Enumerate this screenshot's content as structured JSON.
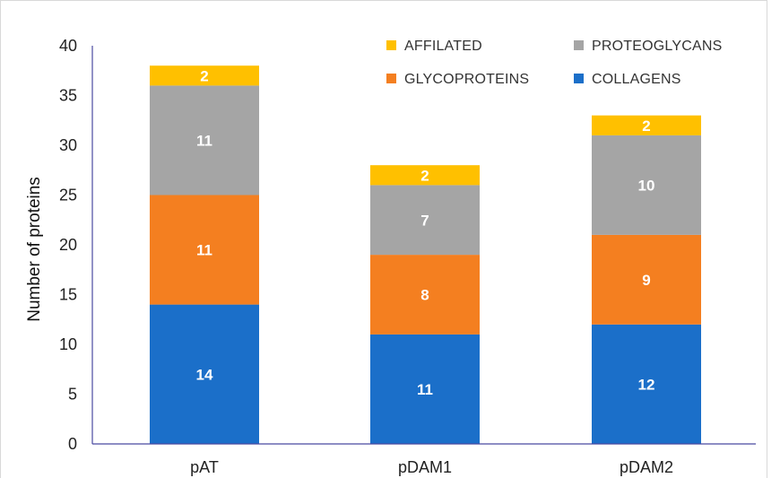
{
  "chart_data": {
    "type": "bar",
    "stacked": true,
    "categories": [
      "pAT",
      "pDAM1",
      "pDAM2"
    ],
    "series": [
      {
        "name": "COLLAGENS",
        "values": [
          14,
          11,
          12
        ],
        "color": "#1b6fc9"
      },
      {
        "name": "GLYCOPROTEINS",
        "values": [
          11,
          8,
          9
        ],
        "color": "#f47f20"
      },
      {
        "name": "PROTEOGLYCANS",
        "values": [
          11,
          7,
          10
        ],
        "color": "#a5a5a5"
      },
      {
        "name": "AFFILATED",
        "values": [
          2,
          2,
          2
        ],
        "color": "#ffc000"
      }
    ],
    "ylabel": "Number of proteins",
    "xlabel": "",
    "ylim": [
      0,
      40
    ],
    "yticks": [
      0,
      5,
      10,
      15,
      20,
      25,
      30,
      35,
      40
    ],
    "grid": false,
    "legend_position": "top-right",
    "legend_order": [
      "AFFILATED",
      "PROTEOGLYCANS",
      "GLYCOPROTEINS",
      "COLLAGENS"
    ]
  }
}
